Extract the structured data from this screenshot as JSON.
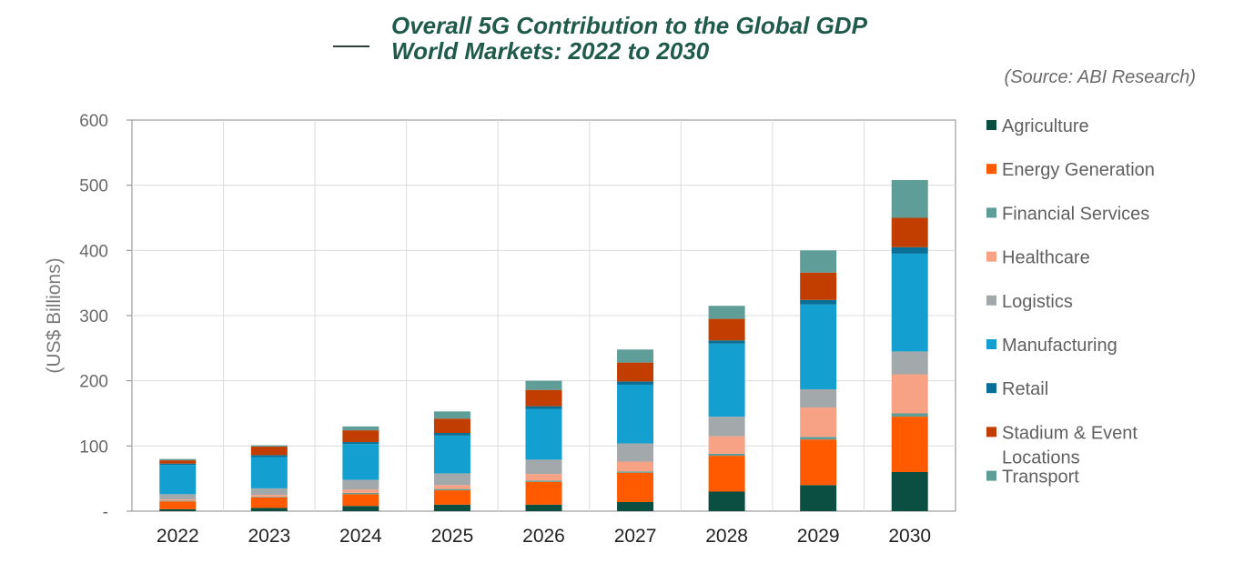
{
  "chart_data": {
    "type": "bar",
    "stacked": true,
    "title": [
      "Overall 5G Contribution to the Global GDP",
      "World Markets: 2022 to 2030"
    ],
    "source": "(Source: ABI Research)",
    "ylabel": "(US$ Billions)",
    "xlabel": "",
    "ylim": [
      0,
      600
    ],
    "yticks": [
      "600",
      "500",
      "400",
      "300",
      "200",
      "100",
      "-"
    ],
    "ytick_values": [
      600,
      500,
      400,
      300,
      200,
      100,
      0
    ],
    "grid": true,
    "legend_position": "right",
    "categories": [
      "2022",
      "2023",
      "2024",
      "2025",
      "2026",
      "2027",
      "2028",
      "2029",
      "2030"
    ],
    "series": [
      {
        "name": "Agriculture",
        "color": "#0b4f42",
        "values": [
          3,
          5,
          8,
          10,
          10,
          14,
          30,
          40,
          60
        ]
      },
      {
        "name": "Energy Generation",
        "color": "#ff5a00",
        "values": [
          12,
          16,
          18,
          22,
          35,
          45,
          55,
          70,
          85
        ]
      },
      {
        "name": "Financial Services",
        "color": "#5f9e98",
        "values": [
          1,
          1,
          2,
          2,
          2,
          2,
          3,
          4,
          5
        ]
      },
      {
        "name": "Healthcare",
        "color": "#f7a285",
        "values": [
          2,
          3,
          5,
          6,
          10,
          15,
          27,
          45,
          60
        ]
      },
      {
        "name": "Logistics",
        "color": "#a3a8ab",
        "values": [
          8,
          10,
          15,
          18,
          22,
          28,
          30,
          28,
          35
        ]
      },
      {
        "name": "Manufacturing",
        "color": "#149fd1",
        "values": [
          45,
          48,
          55,
          58,
          78,
          90,
          112,
          130,
          150
        ]
      },
      {
        "name": "Retail",
        "color": "#0a6f96",
        "values": [
          2,
          3,
          3,
          4,
          4,
          5,
          5,
          7,
          10
        ]
      },
      {
        "name": "Stadium & Event\nLocations",
        "color": "#c23e00",
        "values": [
          5,
          13,
          18,
          22,
          25,
          29,
          33,
          42,
          45
        ]
      },
      {
        "name": "Transport",
        "color": "#5f9e98",
        "values": [
          2,
          2,
          6,
          11,
          14,
          20,
          20,
          34,
          58
        ]
      }
    ]
  }
}
